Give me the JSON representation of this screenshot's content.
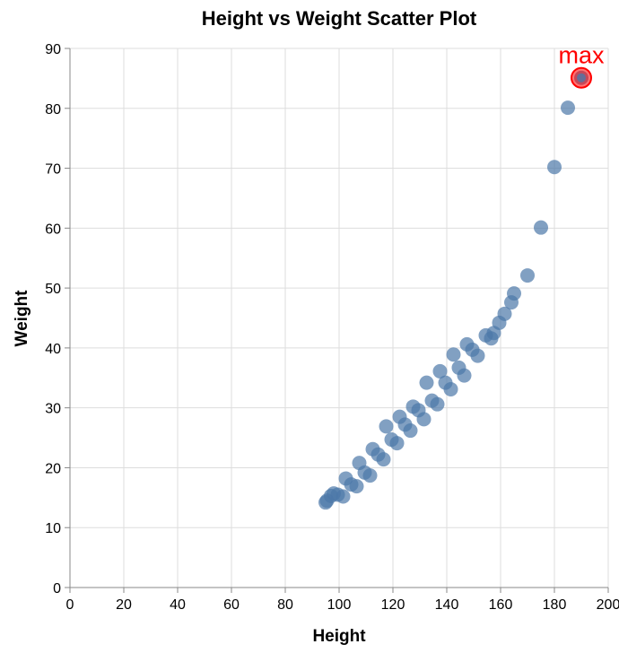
{
  "chart_data": {
    "type": "scatter",
    "title": "Height vs Weight Scatter Plot",
    "xlabel": "Height",
    "ylabel": "Weight",
    "xlim": [
      0,
      200
    ],
    "ylim": [
      0,
      90
    ],
    "xticks": [
      0,
      20,
      40,
      60,
      80,
      100,
      120,
      140,
      160,
      180,
      200
    ],
    "yticks": [
      0,
      10,
      20,
      30,
      40,
      50,
      60,
      70,
      80,
      90
    ],
    "grid": true,
    "point_color": "#4c78a8",
    "highlight_color": "#ff0000",
    "points": [
      {
        "x": 95,
        "y": 14.2
      },
      {
        "x": 95.5,
        "y": 14.5
      },
      {
        "x": 97,
        "y": 15.3
      },
      {
        "x": 98,
        "y": 15.7
      },
      {
        "x": 99.5,
        "y": 15.5
      },
      {
        "x": 101.5,
        "y": 15.2
      },
      {
        "x": 102.5,
        "y": 18.2
      },
      {
        "x": 104.5,
        "y": 17.2
      },
      {
        "x": 106.5,
        "y": 16.9
      },
      {
        "x": 107.5,
        "y": 20.8
      },
      {
        "x": 109.5,
        "y": 19.2
      },
      {
        "x": 111.5,
        "y": 18.7
      },
      {
        "x": 112.5,
        "y": 23.1
      },
      {
        "x": 114.5,
        "y": 22.2
      },
      {
        "x": 116.5,
        "y": 21.4
      },
      {
        "x": 117.5,
        "y": 26.9
      },
      {
        "x": 119.5,
        "y": 24.7
      },
      {
        "x": 121.5,
        "y": 24.1
      },
      {
        "x": 122.5,
        "y": 28.5
      },
      {
        "x": 124.5,
        "y": 27.2
      },
      {
        "x": 126.5,
        "y": 26.2
      },
      {
        "x": 127.5,
        "y": 30.2
      },
      {
        "x": 129.5,
        "y": 29.6
      },
      {
        "x": 131.5,
        "y": 28.1
      },
      {
        "x": 132.5,
        "y": 34.2
      },
      {
        "x": 134.5,
        "y": 31.2
      },
      {
        "x": 136.5,
        "y": 30.6
      },
      {
        "x": 137.5,
        "y": 36.1
      },
      {
        "x": 139.5,
        "y": 34.2
      },
      {
        "x": 141.5,
        "y": 33.1
      },
      {
        "x": 142.5,
        "y": 38.9
      },
      {
        "x": 144.5,
        "y": 36.7
      },
      {
        "x": 146.5,
        "y": 35.4
      },
      {
        "x": 147.5,
        "y": 40.6
      },
      {
        "x": 149.5,
        "y": 39.7
      },
      {
        "x": 151.5,
        "y": 38.7
      },
      {
        "x": 154.5,
        "y": 42.1
      },
      {
        "x": 156.5,
        "y": 41.6
      },
      {
        "x": 157.5,
        "y": 42.5
      },
      {
        "x": 159.5,
        "y": 44.2
      },
      {
        "x": 161.5,
        "y": 45.7
      },
      {
        "x": 164,
        "y": 47.6
      },
      {
        "x": 165,
        "y": 49.1
      },
      {
        "x": 170,
        "y": 52.1
      },
      {
        "x": 175,
        "y": 60.1
      },
      {
        "x": 180,
        "y": 70.2
      },
      {
        "x": 185,
        "y": 80.1
      },
      {
        "x": 190,
        "y": 85.1
      }
    ],
    "annotation": {
      "label": "max",
      "x": 190,
      "y": 85.1
    }
  }
}
